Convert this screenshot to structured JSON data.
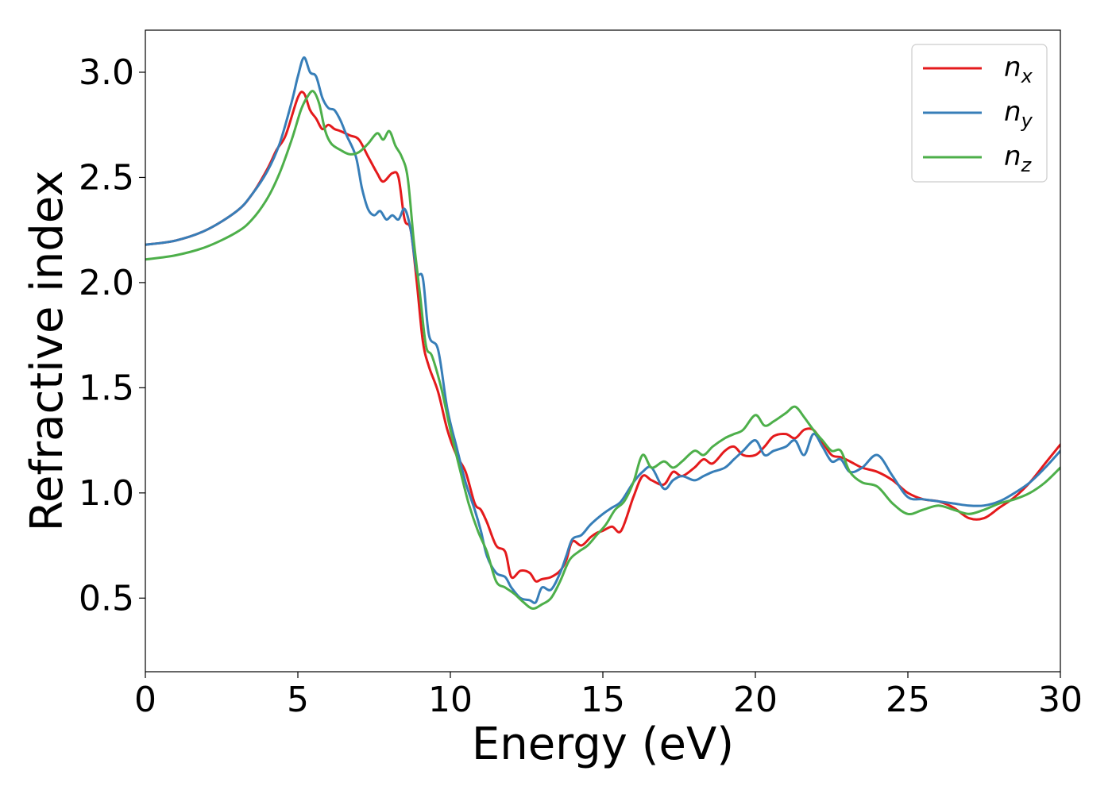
{
  "chart_data": {
    "type": "line",
    "title": "",
    "xlabel": "Energy (eV)",
    "ylabel": "Refractive index",
    "xlim": [
      0,
      30
    ],
    "ylim": [
      0.15,
      3.2
    ],
    "xticks": [
      "0",
      "5",
      "10",
      "15",
      "20",
      "25",
      "30"
    ],
    "yticks": [
      "0.5",
      "1.0",
      "1.5",
      "2.0",
      "2.5",
      "3.0"
    ],
    "grid": false,
    "legend_position": "top-right",
    "series": [
      {
        "name": "n_x",
        "label_main": "n",
        "label_sub": "x",
        "color": "#e41a1c",
        "x": [
          0,
          1,
          2,
          3,
          3.5,
          4,
          4.3,
          4.6,
          5.0,
          5.2,
          5.4,
          5.6,
          5.8,
          6.0,
          6.2,
          6.4,
          6.7,
          7.0,
          7.3,
          7.6,
          7.8,
          8.1,
          8.3,
          8.5,
          8.7,
          8.9,
          9.1,
          9.3,
          9.6,
          9.9,
          10.2,
          10.5,
          10.8,
          11.0,
          11.2,
          11.5,
          11.8,
          12.0,
          12.3,
          12.6,
          12.8,
          13.0,
          13.3,
          13.6,
          13.8,
          14.0,
          14.3,
          14.6,
          14.8,
          15.0,
          15.3,
          15.6,
          16.0,
          16.3,
          16.6,
          17.0,
          17.3,
          17.6,
          18.0,
          18.3,
          18.6,
          19.0,
          19.3,
          19.6,
          20.0,
          20.3,
          20.6,
          21.0,
          21.3,
          21.6,
          21.9,
          22.2,
          22.5,
          22.8,
          23.1,
          23.5,
          24.0,
          24.5,
          25.0,
          25.5,
          26.0,
          26.5,
          27.0,
          27.5,
          28.0,
          28.5,
          29.0,
          29.5,
          30.0
        ],
        "y": [
          2.18,
          2.2,
          2.25,
          2.34,
          2.42,
          2.54,
          2.63,
          2.7,
          2.88,
          2.9,
          2.82,
          2.78,
          2.73,
          2.75,
          2.73,
          2.72,
          2.7,
          2.68,
          2.6,
          2.52,
          2.48,
          2.52,
          2.5,
          2.3,
          2.25,
          2.0,
          1.72,
          1.6,
          1.48,
          1.3,
          1.18,
          1.1,
          0.95,
          0.92,
          0.86,
          0.75,
          0.72,
          0.6,
          0.63,
          0.62,
          0.58,
          0.59,
          0.6,
          0.63,
          0.68,
          0.77,
          0.75,
          0.79,
          0.81,
          0.82,
          0.84,
          0.82,
          0.98,
          1.08,
          1.06,
          1.04,
          1.1,
          1.08,
          1.12,
          1.16,
          1.14,
          1.2,
          1.22,
          1.18,
          1.18,
          1.22,
          1.27,
          1.28,
          1.26,
          1.3,
          1.3,
          1.24,
          1.18,
          1.17,
          1.15,
          1.12,
          1.1,
          1.06,
          1.0,
          0.97,
          0.96,
          0.93,
          0.88,
          0.88,
          0.93,
          0.98,
          1.05,
          1.14,
          1.23
        ]
      },
      {
        "name": "n_y",
        "label_main": "n",
        "label_sub": "y",
        "color": "#377eb8",
        "x": [
          0,
          1,
          2,
          3,
          3.5,
          4,
          4.4,
          4.8,
          5.0,
          5.2,
          5.4,
          5.6,
          5.8,
          6.0,
          6.2,
          6.4,
          6.6,
          6.9,
          7.1,
          7.3,
          7.5,
          7.7,
          7.9,
          8.1,
          8.3,
          8.5,
          8.7,
          8.9,
          9.1,
          9.3,
          9.6,
          9.9,
          10.2,
          10.5,
          10.8,
          11.0,
          11.2,
          11.5,
          11.8,
          12.0,
          12.3,
          12.6,
          12.8,
          13.0,
          13.3,
          13.6,
          13.8,
          14.0,
          14.3,
          14.6,
          15.0,
          15.3,
          15.6,
          16.0,
          16.3,
          16.6,
          17.0,
          17.3,
          17.6,
          18.0,
          18.3,
          18.6,
          19.0,
          19.3,
          19.6,
          20.0,
          20.3,
          20.6,
          21.0,
          21.3,
          21.6,
          21.9,
          22.2,
          22.5,
          22.8,
          23.1,
          23.5,
          24.0,
          24.5,
          25.0,
          25.5,
          26.0,
          26.5,
          27.0,
          27.5,
          28.0,
          28.5,
          29.0,
          29.5,
          30.0
        ],
        "y": [
          2.18,
          2.2,
          2.25,
          2.34,
          2.42,
          2.53,
          2.66,
          2.86,
          2.98,
          3.07,
          3.0,
          2.98,
          2.88,
          2.83,
          2.82,
          2.77,
          2.7,
          2.6,
          2.45,
          2.35,
          2.32,
          2.34,
          2.3,
          2.32,
          2.3,
          2.35,
          2.25,
          2.05,
          2.02,
          1.75,
          1.68,
          1.4,
          1.22,
          1.05,
          0.92,
          0.82,
          0.7,
          0.62,
          0.6,
          0.55,
          0.5,
          0.49,
          0.48,
          0.55,
          0.54,
          0.62,
          0.7,
          0.78,
          0.8,
          0.85,
          0.9,
          0.93,
          0.96,
          1.05,
          1.1,
          1.12,
          1.02,
          1.06,
          1.08,
          1.06,
          1.08,
          1.1,
          1.12,
          1.16,
          1.2,
          1.25,
          1.18,
          1.2,
          1.22,
          1.25,
          1.18,
          1.28,
          1.22,
          1.15,
          1.16,
          1.1,
          1.12,
          1.18,
          1.08,
          0.98,
          0.97,
          0.96,
          0.95,
          0.94,
          0.94,
          0.96,
          1.0,
          1.05,
          1.12,
          1.2
        ]
      },
      {
        "name": "n_z",
        "label_main": "n",
        "label_sub": "z",
        "color": "#4daf4a",
        "x": [
          0,
          1,
          2,
          3,
          3.5,
          4,
          4.4,
          4.8,
          5.1,
          5.3,
          5.5,
          5.7,
          5.9,
          6.1,
          6.4,
          6.7,
          7.0,
          7.3,
          7.6,
          7.8,
          8.0,
          8.2,
          8.4,
          8.6,
          8.8,
          9.0,
          9.2,
          9.4,
          9.7,
          10.0,
          10.3,
          10.6,
          10.9,
          11.2,
          11.5,
          11.8,
          12.1,
          12.4,
          12.7,
          13.0,
          13.3,
          13.6,
          13.9,
          14.2,
          14.5,
          14.8,
          15.1,
          15.4,
          15.7,
          16.0,
          16.3,
          16.6,
          17.0,
          17.3,
          17.6,
          18.0,
          18.3,
          18.6,
          19.0,
          19.3,
          19.6,
          20.0,
          20.3,
          20.6,
          21.0,
          21.3,
          21.6,
          21.9,
          22.2,
          22.5,
          22.8,
          23.1,
          23.5,
          24.0,
          24.5,
          25.0,
          25.5,
          26.0,
          26.5,
          27.0,
          27.5,
          28.0,
          28.5,
          29.0,
          29.5,
          30.0
        ],
        "y": [
          2.11,
          2.13,
          2.17,
          2.24,
          2.3,
          2.4,
          2.52,
          2.68,
          2.82,
          2.88,
          2.91,
          2.85,
          2.72,
          2.66,
          2.63,
          2.61,
          2.62,
          2.66,
          2.71,
          2.68,
          2.72,
          2.65,
          2.6,
          2.5,
          2.2,
          1.95,
          1.7,
          1.65,
          1.5,
          1.3,
          1.12,
          0.95,
          0.82,
          0.72,
          0.58,
          0.55,
          0.52,
          0.48,
          0.45,
          0.47,
          0.5,
          0.58,
          0.68,
          0.72,
          0.75,
          0.8,
          0.85,
          0.92,
          0.96,
          1.05,
          1.18,
          1.12,
          1.15,
          1.12,
          1.15,
          1.2,
          1.18,
          1.22,
          1.26,
          1.28,
          1.3,
          1.37,
          1.32,
          1.34,
          1.38,
          1.41,
          1.36,
          1.3,
          1.25,
          1.2,
          1.2,
          1.1,
          1.05,
          1.03,
          0.95,
          0.9,
          0.92,
          0.94,
          0.92,
          0.9,
          0.92,
          0.95,
          0.97,
          1.0,
          1.05,
          1.12
        ]
      }
    ]
  }
}
